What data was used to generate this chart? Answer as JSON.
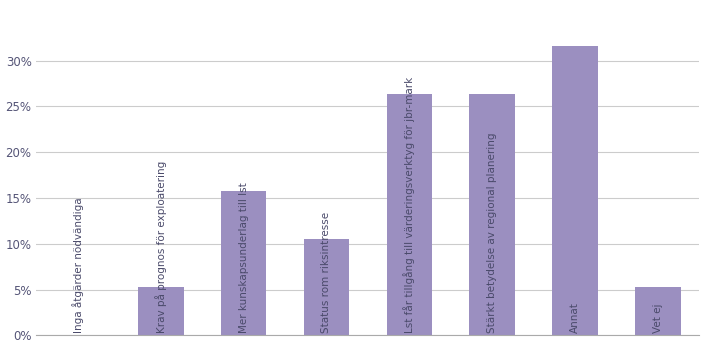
{
  "categories": [
    "Inga åtgärder nödvändiga",
    "Krav på prognos för exploatering",
    "Mer kunskapsunderlag till lst",
    "Status rom riksintresse",
    "Lst får tillgång till värderingsverktyg för jbr-mark",
    "Stärkt betydelse av regional planering",
    "Annat",
    "Vet ej"
  ],
  "values": [
    0.0,
    0.053,
    0.158,
    0.105,
    0.263,
    0.263,
    0.316,
    0.053
  ],
  "bar_color": "#9b8fc0",
  "ylim": [
    0,
    0.36
  ],
  "yticks": [
    0.0,
    0.05,
    0.1,
    0.15,
    0.2,
    0.25,
    0.3
  ],
  "ytick_labels": [
    "0%",
    "5%",
    "10%",
    "15%",
    "20%",
    "25%",
    "30%"
  ],
  "background_color": "#ffffff",
  "grid_color": "#cccccc",
  "label_fontsize": 7.5,
  "label_color": "#4a4a6a",
  "tick_color": "#555577"
}
